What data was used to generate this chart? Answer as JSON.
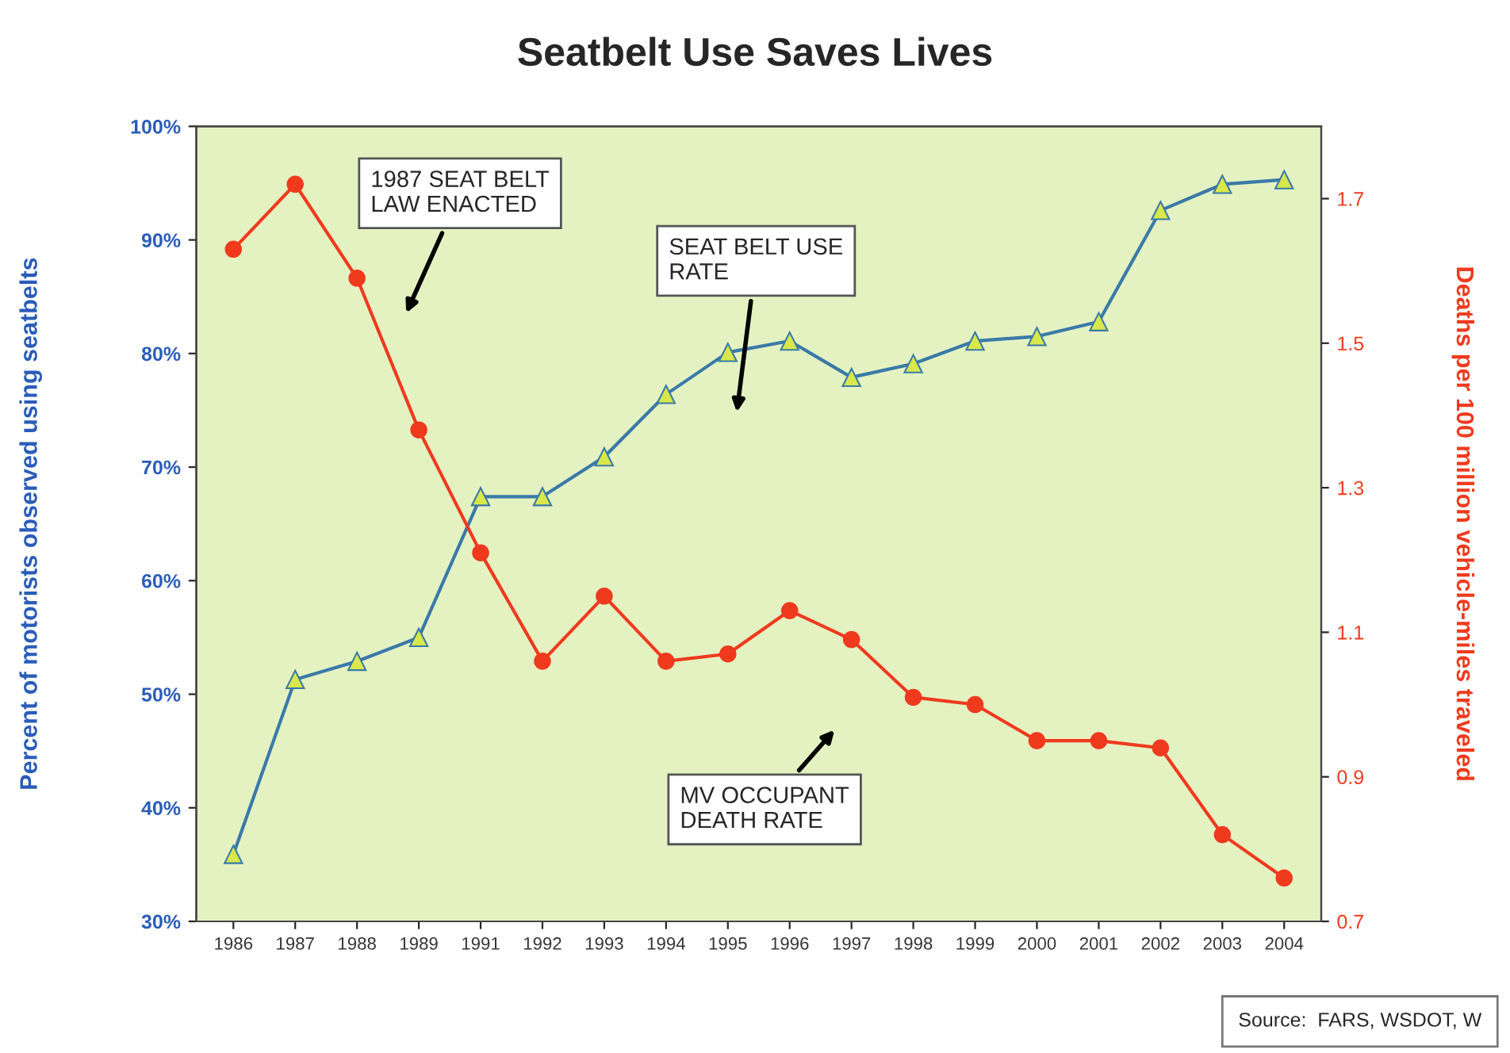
{
  "chart_data": {
    "type": "line",
    "title": "Seatbelt Use Saves Lives",
    "ylabel": "Percent of motorists observed using seatbelts",
    "y2label": "Deaths per 100 million vehicle-miles traveled",
    "categories": [
      "1986",
      "1987",
      "1988",
      "1989",
      "1991",
      "1992",
      "1993",
      "1994",
      "1995",
      "1996",
      "1997",
      "1998",
      "1999",
      "2000",
      "2001",
      "2002",
      "2003",
      "2004"
    ],
    "series": [
      {
        "color": "#3a7aa8",
        "marker": "triangle",
        "values": [
          35.9,
          51.3,
          52.9,
          55.0,
          67.4,
          67.4,
          70.9,
          76.4,
          80.1,
          81.1,
          77.9,
          79.1,
          81.1,
          81.5,
          82.8,
          92.6,
          94.9,
          95.3
        ]
      },
      {
        "color": "#f03a1e",
        "marker": "circle",
        "axis": "y2",
        "values": [
          1.63,
          1.72,
          1.59,
          1.38,
          1.21,
          1.06,
          1.15,
          1.06,
          1.07,
          1.13,
          1.09,
          1.01,
          1.0,
          0.95,
          0.95,
          0.94,
          0.82,
          0.76
        ]
      }
    ],
    "ylim": [
      30,
      100
    ],
    "yticks": [
      {
        "value": 30,
        "label": "30%"
      },
      {
        "value": 40,
        "label": "40%"
      },
      {
        "value": 50,
        "label": "50%"
      },
      {
        "value": 60,
        "label": "60%"
      },
      {
        "value": 70,
        "label": "70%"
      },
      {
        "value": 80,
        "label": "80%"
      },
      {
        "value": 90,
        "label": "90%"
      },
      {
        "value": 100,
        "label": "100%"
      }
    ],
    "y2lim": [
      0.7,
      1.8
    ],
    "y2ticks": [
      0.7,
      0.9,
      1.1,
      1.3,
      1.5,
      1.7
    ],
    "grid": false,
    "legend": false,
    "annotations": [
      "1987 SEAT BELT\nLAW ENACTED",
      "SEAT BELT USE\nRATE",
      "MV OCCUPANT\nDEATH RATE",
      "Source:  FARS, WSDOT, W"
    ]
  }
}
